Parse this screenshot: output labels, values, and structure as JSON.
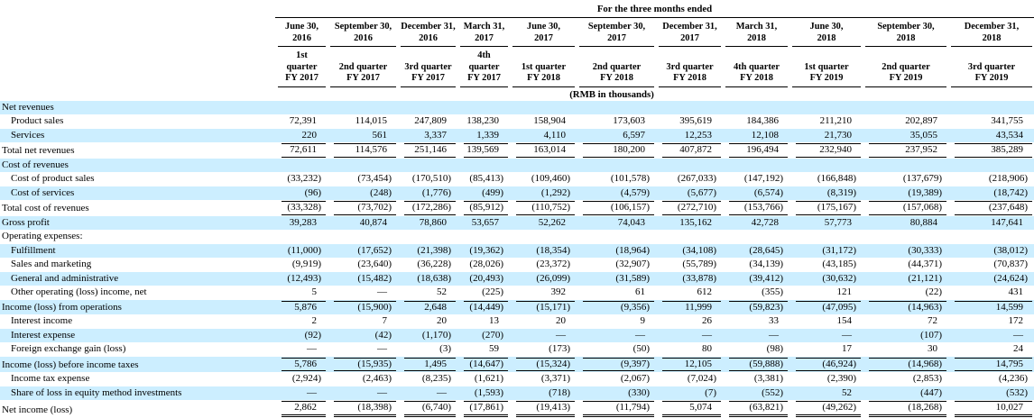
{
  "table": {
    "title": "For the three months ended",
    "unit_note": "(RMB in thousands)",
    "highlight_color": "#cceeff",
    "columns": [
      {
        "period_end": "June 30,\n2016",
        "quarter": "1st\nquarter\nFY 2017"
      },
      {
        "period_end": "September 30,\n2016",
        "quarter": "2nd quarter\nFY 2017"
      },
      {
        "period_end": "December 31,\n2016",
        "quarter": "3rd quarter\nFY 2017"
      },
      {
        "period_end": "March 31,\n2017",
        "quarter": "4th\nquarter\nFY 2017"
      },
      {
        "period_end": "June 30,\n2017",
        "quarter": "1st quarter\nFY 2018"
      },
      {
        "period_end": "September 30,\n2017",
        "quarter": "2nd quarter\nFY 2018"
      },
      {
        "period_end": "December 31,\n2017",
        "quarter": "3rd quarter\nFY 2018"
      },
      {
        "period_end": "March 31,\n2018",
        "quarter": "4th quarter\nFY 2018"
      },
      {
        "period_end": "June 30,\n2018",
        "quarter": "1st quarter\nFY 2019"
      },
      {
        "period_end": "September 30,\n2018",
        "quarter": "2nd quarter\nFY 2019"
      },
      {
        "period_end": "December 31,\n2018",
        "quarter": "3rd quarter\nFY 2019"
      }
    ],
    "rows": [
      {
        "label": "Net revenues",
        "section": true,
        "bold": true,
        "indent": false,
        "shaded": true,
        "rule_top": false,
        "rule_bottom": null,
        "values": []
      },
      {
        "label": "Product sales",
        "section": false,
        "bold": false,
        "indent": true,
        "shaded": false,
        "rule_top": false,
        "rule_bottom": null,
        "values": [
          "72,391",
          "114,015",
          "247,809",
          "138,230",
          "158,904",
          "173,603",
          "395,619",
          "184,386",
          "211,210",
          "202,897",
          "341,755"
        ]
      },
      {
        "label": "Services",
        "section": false,
        "bold": false,
        "indent": true,
        "shaded": true,
        "rule_top": false,
        "rule_bottom": null,
        "values": [
          "220",
          "561",
          "3,337",
          "1,339",
          "4,110",
          "6,597",
          "12,253",
          "12,108",
          "21,730",
          "35,055",
          "43,534"
        ]
      },
      {
        "label": "Total net revenues",
        "section": false,
        "bold": true,
        "indent": false,
        "shaded": false,
        "rule_top": true,
        "rule_bottom": "single",
        "values": [
          "72,611",
          "114,576",
          "251,146",
          "139,569",
          "163,014",
          "180,200",
          "407,872",
          "196,494",
          "232,940",
          "237,952",
          "385,289"
        ]
      },
      {
        "label": "Cost of revenues",
        "section": true,
        "bold": false,
        "indent": false,
        "shaded": true,
        "rule_top": false,
        "rule_bottom": null,
        "values": []
      },
      {
        "label": "Cost of product sales",
        "section": false,
        "bold": false,
        "indent": true,
        "shaded": false,
        "rule_top": false,
        "rule_bottom": null,
        "values": [
          "(33,232)",
          "(73,454)",
          "(170,510)",
          "(85,413)",
          "(109,460)",
          "(101,578)",
          "(267,033)",
          "(147,192)",
          "(166,848)",
          "(137,679)",
          "(218,906)"
        ]
      },
      {
        "label": "Cost of services",
        "section": false,
        "bold": false,
        "indent": true,
        "shaded": true,
        "rule_top": false,
        "rule_bottom": null,
        "values": [
          "(96)",
          "(248)",
          "(1,776)",
          "(499)",
          "(1,292)",
          "(4,579)",
          "(5,677)",
          "(6,574)",
          "(8,319)",
          "(19,389)",
          "(18,742)"
        ]
      },
      {
        "label": "Total cost of revenues",
        "section": false,
        "bold": true,
        "indent": false,
        "shaded": false,
        "rule_top": true,
        "rule_bottom": "single",
        "values": [
          "(33,328)",
          "(73,702)",
          "(172,286)",
          "(85,912)",
          "(110,752)",
          "(106,157)",
          "(272,710)",
          "(153,766)",
          "(175,167)",
          "(157,068)",
          "(237,648)"
        ]
      },
      {
        "label": "Gross profit",
        "section": false,
        "bold": true,
        "indent": false,
        "shaded": true,
        "rule_top": false,
        "rule_bottom": null,
        "values": [
          "39,283",
          "40,874",
          "78,860",
          "53,657",
          "52,262",
          "74,043",
          "135,162",
          "42,728",
          "57,773",
          "80,884",
          "147,641"
        ]
      },
      {
        "label": "Operating expenses:",
        "section": true,
        "bold": true,
        "indent": false,
        "shaded": false,
        "rule_top": false,
        "rule_bottom": null,
        "values": []
      },
      {
        "label": "Fulfillment",
        "section": false,
        "bold": false,
        "indent": true,
        "shaded": true,
        "rule_top": false,
        "rule_bottom": null,
        "values": [
          "(11,000)",
          "(17,652)",
          "(21,398)",
          "(19,362)",
          "(18,354)",
          "(18,964)",
          "(34,108)",
          "(28,645)",
          "(31,172)",
          "(30,333)",
          "(38,012)"
        ]
      },
      {
        "label": "Sales and marketing",
        "section": false,
        "bold": false,
        "indent": true,
        "shaded": false,
        "rule_top": false,
        "rule_bottom": null,
        "values": [
          "(9,919)",
          "(23,640)",
          "(36,228)",
          "(28,026)",
          "(23,372)",
          "(32,907)",
          "(55,789)",
          "(34,139)",
          "(43,185)",
          "(44,371)",
          "(70,837)"
        ]
      },
      {
        "label": "General and administrative",
        "section": false,
        "bold": false,
        "indent": true,
        "shaded": true,
        "rule_top": false,
        "rule_bottom": null,
        "values": [
          "(12,493)",
          "(15,482)",
          "(18,638)",
          "(20,493)",
          "(26,099)",
          "(31,589)",
          "(33,878)",
          "(39,412)",
          "(30,632)",
          "(21,121)",
          "(24,624)"
        ]
      },
      {
        "label": "Other operating (loss) income, net",
        "section": false,
        "bold": false,
        "indent": true,
        "shaded": false,
        "rule_top": false,
        "rule_bottom": null,
        "values": [
          "5",
          "—",
          "52",
          "(225)",
          "392",
          "61",
          "612",
          "(355)",
          "121",
          "(22)",
          "431"
        ]
      },
      {
        "label": "Income (loss) from operations",
        "section": false,
        "bold": true,
        "indent": false,
        "shaded": true,
        "rule_top": true,
        "rule_bottom": null,
        "values": [
          "5,876",
          "(15,900)",
          "2,648",
          "(14,449)",
          "(15,171)",
          "(9,356)",
          "11,999",
          "(59,823)",
          "(47,095)",
          "(14,963)",
          "14,599"
        ]
      },
      {
        "label": "Interest income",
        "section": false,
        "bold": false,
        "indent": true,
        "shaded": false,
        "rule_top": false,
        "rule_bottom": null,
        "values": [
          "2",
          "7",
          "20",
          "13",
          "20",
          "9",
          "26",
          "33",
          "154",
          "72",
          "172"
        ]
      },
      {
        "label": "Interest expense",
        "section": false,
        "bold": false,
        "indent": true,
        "shaded": true,
        "rule_top": false,
        "rule_bottom": null,
        "values": [
          "(92)",
          "(42)",
          "(1,170)",
          "(270)",
          "—",
          "—",
          "—",
          "—",
          "—",
          "(107)",
          "—"
        ]
      },
      {
        "label": "Foreign exchange gain (loss)",
        "section": false,
        "bold": false,
        "indent": true,
        "shaded": false,
        "rule_top": false,
        "rule_bottom": null,
        "values": [
          "—",
          "—",
          "(3)",
          "59",
          "(173)",
          "(50)",
          "80",
          "(98)",
          "17",
          "30",
          "24"
        ]
      },
      {
        "label": "Income (loss) before income taxes",
        "section": false,
        "bold": true,
        "indent": false,
        "shaded": true,
        "rule_top": true,
        "rule_bottom": "single",
        "values": [
          "5,786",
          "(15,935)",
          "1,495",
          "(14,647)",
          "(15,324)",
          "(9,397)",
          "12,105",
          "(59,888)",
          "(46,924)",
          "(14,968)",
          "14,795"
        ]
      },
      {
        "label": "Income tax expense",
        "section": false,
        "bold": false,
        "indent": true,
        "shaded": false,
        "rule_top": false,
        "rule_bottom": null,
        "values": [
          "(2,924)",
          "(2,463)",
          "(8,235)",
          "(1,621)",
          "(3,371)",
          "(2,067)",
          "(7,024)",
          "(3,381)",
          "(2,390)",
          "(2,853)",
          "(4,236)"
        ]
      },
      {
        "label": "Share of loss in equity method investments",
        "section": false,
        "bold": false,
        "indent": true,
        "shaded": true,
        "rule_top": false,
        "rule_bottom": null,
        "values": [
          "—",
          "—",
          "—",
          "(1,593)",
          "(718)",
          "(330)",
          "(7)",
          "(552)",
          "52",
          "(447)",
          "(532)"
        ]
      },
      {
        "label": "Net income (loss)",
        "section": false,
        "bold": true,
        "indent": false,
        "shaded": false,
        "rule_top": true,
        "rule_bottom": "double",
        "values": [
          "2,862",
          "(18,398)",
          "(6,740)",
          "(17,861)",
          "(19,413)",
          "(11,794)",
          "5,074",
          "(63,821)",
          "(49,262)",
          "(18,268)",
          "10,027"
        ]
      }
    ]
  }
}
